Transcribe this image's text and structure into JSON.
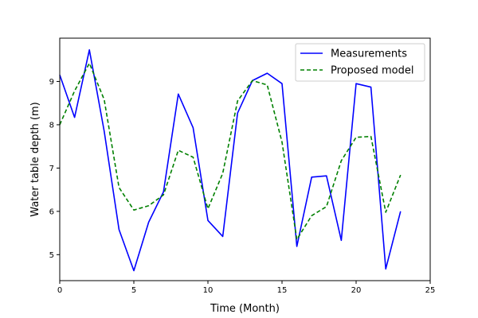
{
  "chart_data": {
    "type": "line",
    "title": "",
    "xlabel": "Time (Month)",
    "ylabel": "Water table depth (m)",
    "xlim": [
      0,
      25
    ],
    "ylim": [
      4.4,
      10.0
    ],
    "xticks": [
      0,
      5,
      10,
      15,
      20,
      25
    ],
    "yticks": [
      5,
      6,
      7,
      8,
      9
    ],
    "grid": false,
    "legend_position": "top-right",
    "x": [
      0,
      1,
      2,
      3,
      4,
      5,
      6,
      7,
      8,
      9,
      10,
      11,
      12,
      13,
      14,
      15,
      16,
      17,
      18,
      19,
      20,
      21,
      22,
      23
    ],
    "series": [
      {
        "name": "Measurements",
        "color": "#0000ff",
        "style": "solid",
        "values": [
          9.15,
          8.17,
          9.73,
          7.85,
          5.58,
          4.63,
          5.75,
          6.45,
          8.71,
          7.93,
          5.79,
          5.42,
          8.27,
          9.02,
          9.19,
          8.95,
          5.19,
          6.79,
          6.82,
          5.33,
          8.95,
          8.87,
          4.67,
          6.0
        ]
      },
      {
        "name": "Proposed model",
        "color": "#008000",
        "style": "dashed",
        "values": [
          8.0,
          8.78,
          9.42,
          8.58,
          6.55,
          6.03,
          6.13,
          6.38,
          7.41,
          7.25,
          6.06,
          6.88,
          8.55,
          9.02,
          8.92,
          7.6,
          5.35,
          5.9,
          6.11,
          7.17,
          7.71,
          7.73,
          5.98,
          6.84
        ]
      }
    ]
  }
}
